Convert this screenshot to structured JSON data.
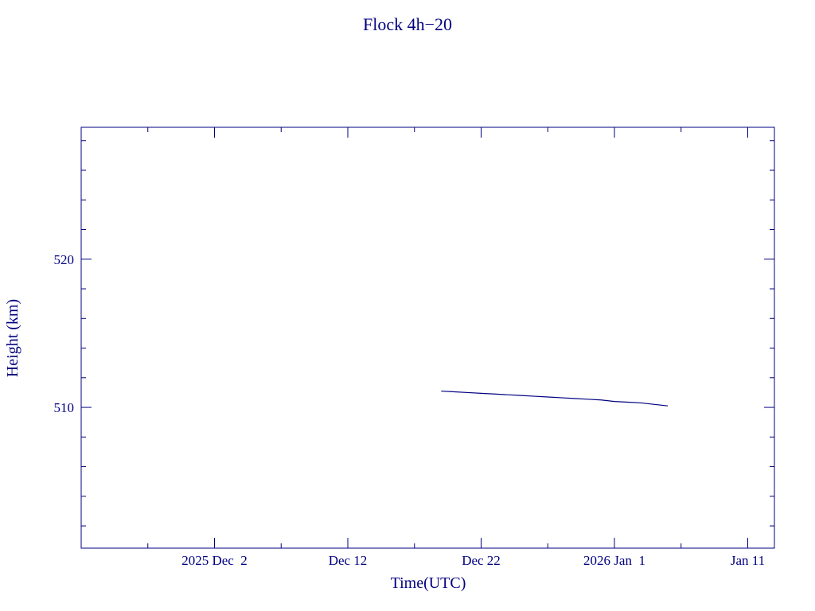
{
  "chart_data": {
    "type": "line",
    "title": "Flock 4h−20",
    "xlabel": "Time(UTC)",
    "ylabel": "Height (km)",
    "x": [
      "2025-12-19",
      "2025-12-20",
      "2025-12-21",
      "2025-12-22",
      "2025-12-23",
      "2025-12-24",
      "2025-12-25",
      "2025-12-26",
      "2025-12-27",
      "2025-12-28",
      "2025-12-29",
      "2025-12-30",
      "2025-12-31",
      "2026-01-01",
      "2026-01-02",
      "2026-01-03",
      "2026-01-04",
      "2026-01-05"
    ],
    "series": [
      {
        "color": "#000080",
        "values": [
          511.1,
          511.05,
          511.0,
          510.95,
          510.9,
          510.85,
          510.8,
          510.75,
          510.7,
          510.65,
          510.6,
          510.55,
          510.5,
          510.4,
          510.35,
          510.3,
          510.2,
          510.1
        ]
      }
    ],
    "xlim": [
      "2025-11-22",
      "2026-01-13"
    ],
    "xticks": [
      {
        "value": "2025-12-02",
        "label": "2025 Dec  2"
      },
      {
        "value": "2025-12-12",
        "label": "Dec 12"
      },
      {
        "value": "2025-12-22",
        "label": "Dec 22"
      },
      {
        "value": "2026-01-01",
        "label": "2026 Jan  1"
      },
      {
        "value": "2026-01-11",
        "label": "Jan 11"
      }
    ],
    "xminorticks": [
      "2025-11-27",
      "2025-12-07",
      "2025-12-17",
      "2025-12-27",
      "2026-01-06"
    ],
    "ylim": [
      500.5,
      528.9
    ],
    "yticks": [
      510,
      520
    ],
    "yminorticks": [
      502,
      504,
      506,
      508,
      512,
      514,
      516,
      518,
      522,
      524,
      526,
      528
    ],
    "axis_color": "#000080"
  }
}
